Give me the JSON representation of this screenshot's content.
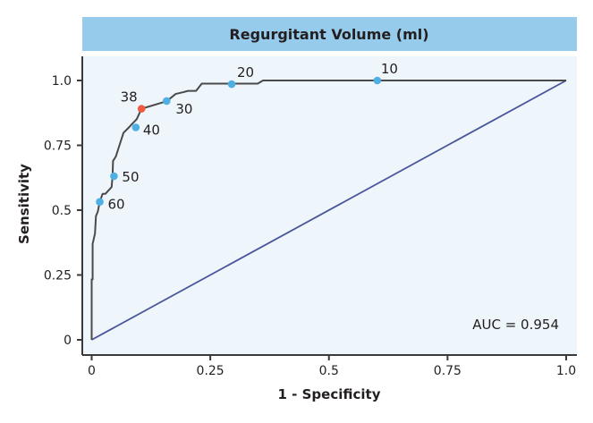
{
  "chart_data": {
    "type": "line",
    "title": "Regurgitant Volume (ml)",
    "xlabel": "1 - Specificity",
    "ylabel": "Sensitivity",
    "xlim": [
      0,
      1
    ],
    "ylim": [
      0,
      1
    ],
    "xticks": [
      "0",
      "0.25",
      "0.5",
      "0.75",
      "1.0"
    ],
    "yticks": [
      "0",
      "0.25",
      "0.5",
      "0.75",
      "1.0"
    ],
    "xtick_values": [
      0,
      0.25,
      0.5,
      0.75,
      1.0
    ],
    "ytick_values": [
      0,
      0.25,
      0.5,
      0.75,
      1.0
    ],
    "grid": false,
    "annotation": "AUC = 0.954",
    "roc_curve": {
      "color": "#4a4a4a",
      "x": [
        0,
        0,
        0.002,
        0.002,
        0.007,
        0.009,
        0.013,
        0.017,
        0.023,
        0.029,
        0.042,
        0.044,
        0.045,
        0.051,
        0.058,
        0.067,
        0.08,
        0.095,
        0.105,
        0.158,
        0.177,
        0.193,
        0.203,
        0.22,
        0.232,
        0.35,
        0.361,
        1.0
      ],
      "y": [
        0,
        0.233,
        0.233,
        0.37,
        0.41,
        0.477,
        0.495,
        0.532,
        0.563,
        0.563,
        0.589,
        0.63,
        0.69,
        0.707,
        0.747,
        0.798,
        0.822,
        0.851,
        0.891,
        0.92,
        0.948,
        0.955,
        0.96,
        0.96,
        0.988,
        0.988,
        1.0,
        1.0
      ]
    },
    "reference_line": {
      "color": "#4a559c",
      "x": [
        0,
        1
      ],
      "y": [
        0,
        1
      ]
    },
    "thresholds": [
      {
        "label": "10",
        "x": 0.602,
        "y": 1.0,
        "color": "#4eb0e2"
      },
      {
        "label": "20",
        "x": 0.295,
        "y": 0.986,
        "color": "#4eb0e2"
      },
      {
        "label": "30",
        "x": 0.158,
        "y": 0.921,
        "color": "#4eb0e2"
      },
      {
        "label": "38",
        "x": 0.105,
        "y": 0.891,
        "color": "#f05a40"
      },
      {
        "label": "40",
        "x": 0.093,
        "y": 0.819,
        "color": "#4eb0e2"
      },
      {
        "label": "50",
        "x": 0.047,
        "y": 0.631,
        "color": "#4eb0e2"
      },
      {
        "label": "60",
        "x": 0.017,
        "y": 0.532,
        "color": "#4eb0e2"
      }
    ],
    "colors": {
      "title_bar": "#97cbec",
      "plot_bg": "#eef5fb"
    }
  }
}
